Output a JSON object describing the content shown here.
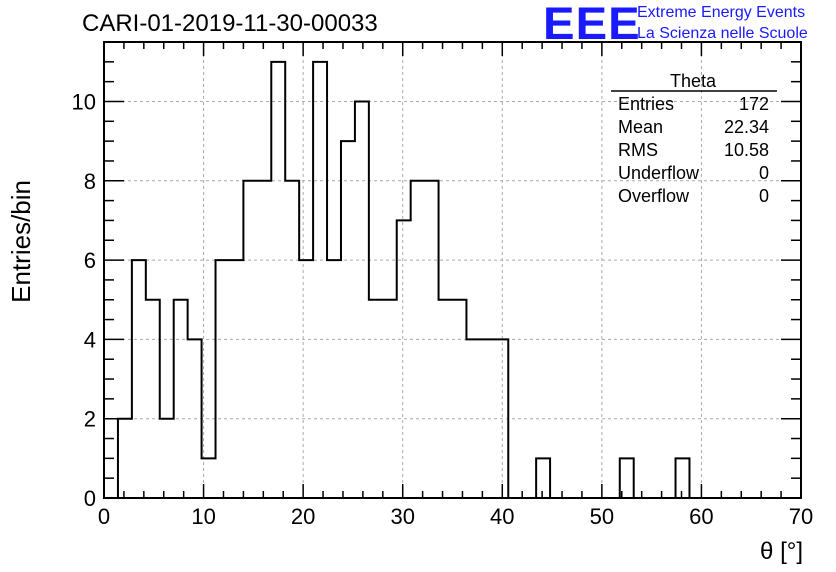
{
  "title": "CARI-01-2019-11-30-00033",
  "logo": {
    "text": "EEE",
    "line1": "Extreme Energy Events",
    "line2": "La Scienza nelle Scuole",
    "color": "#1a1aff"
  },
  "stats": {
    "name": "Theta",
    "rows": [
      {
        "label": "Entries",
        "value": "172"
      },
      {
        "label": "Mean",
        "value": "22.34"
      },
      {
        "label": "RMS",
        "value": "10.58"
      },
      {
        "label": "Underflow",
        "value": "0"
      },
      {
        "label": "Overflow",
        "value": "0"
      }
    ]
  },
  "chart_data": {
    "type": "histogram",
    "xlabel": "θ [°]",
    "ylabel": "Entries/bin",
    "xlim": [
      0,
      70
    ],
    "ylim": [
      0,
      11.5
    ],
    "xticks": [
      0,
      10,
      20,
      30,
      40,
      50,
      60,
      70
    ],
    "yticks": [
      0,
      2,
      4,
      6,
      8,
      10
    ],
    "grid": true,
    "bin_width": 1.4,
    "bin_edges_start": 0,
    "values": [
      0,
      2,
      6,
      5,
      2,
      5,
      4,
      1,
      6,
      6,
      8,
      8,
      11,
      8,
      6,
      11,
      6,
      9,
      10,
      5,
      5,
      7,
      8,
      8,
      5,
      5,
      4,
      4,
      4,
      0,
      0,
      1,
      0,
      0,
      0,
      0,
      0,
      1,
      0,
      0,
      0,
      1,
      0,
      0,
      0,
      0,
      0,
      0,
      0,
      0
    ]
  }
}
